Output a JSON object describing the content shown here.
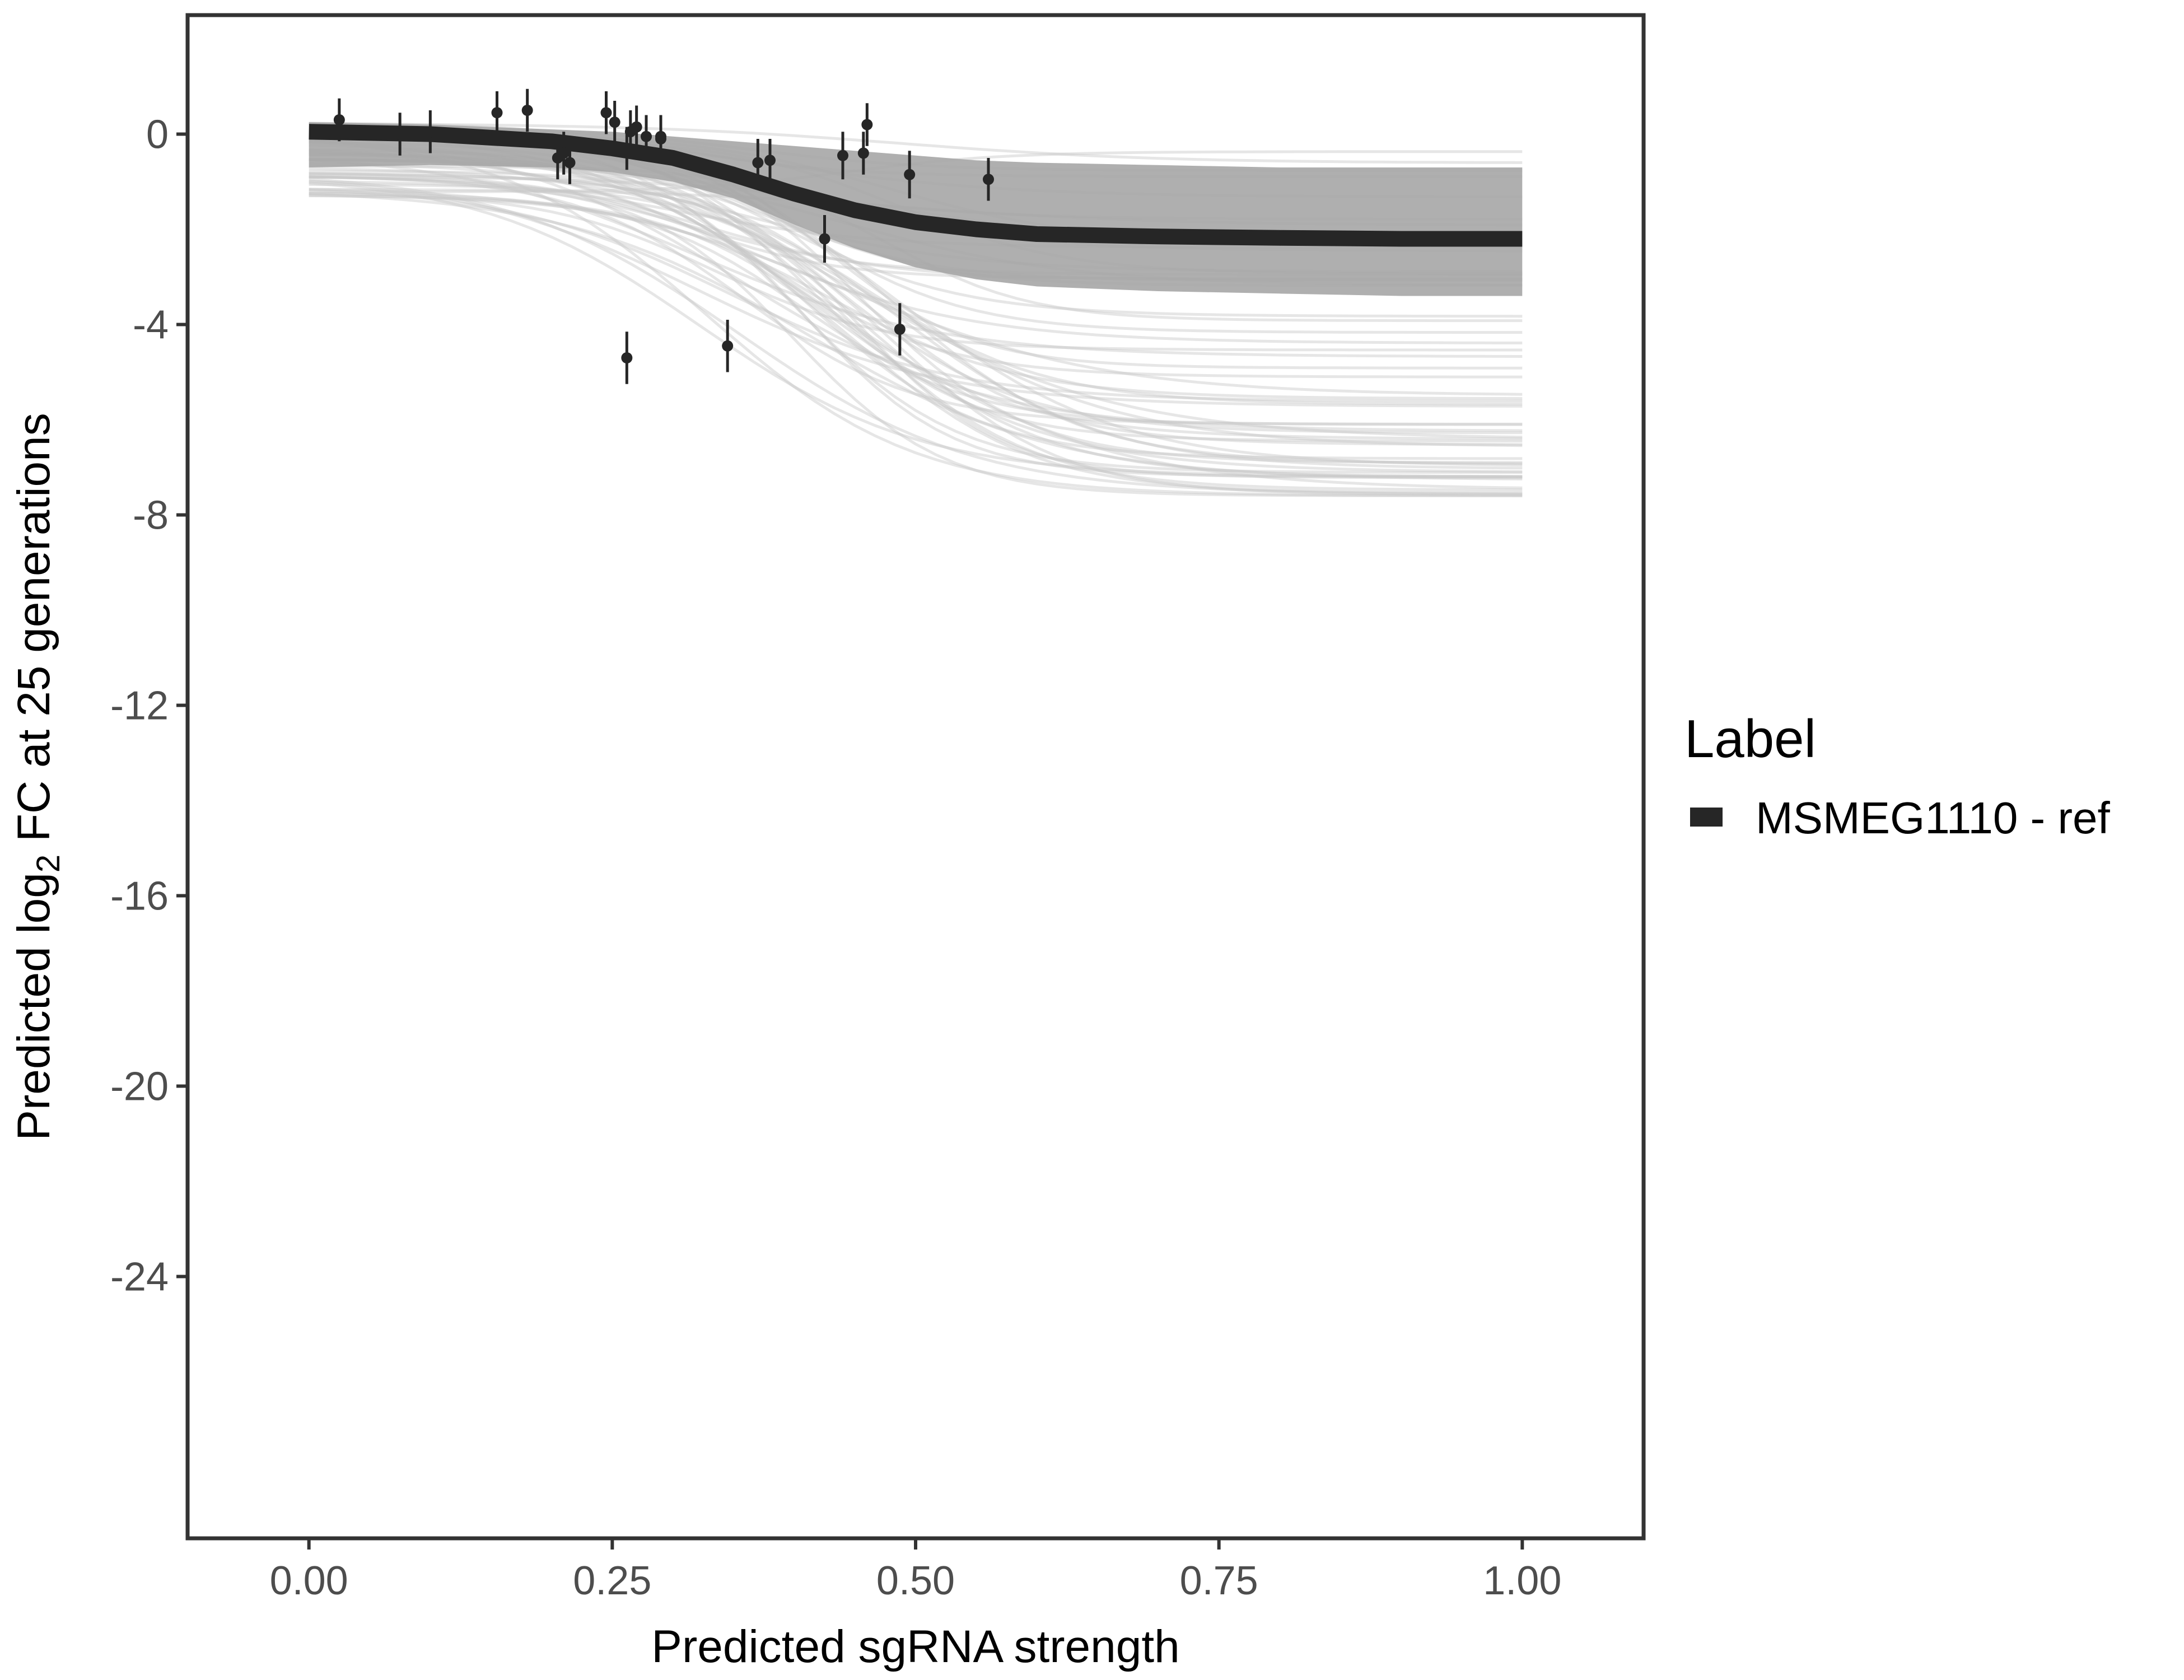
{
  "chart_data": {
    "type": "line",
    "xlabel": "Predicted sgRNA strength",
    "ylabel": {
      "prefix": "Predicted  log",
      "subscript": "2",
      "suffix": " FC at 25 generations"
    },
    "xlim": [
      -0.1,
      1.1
    ],
    "ylim": [
      -29.5,
      2.5
    ],
    "x_ticks": [
      0.0,
      0.25,
      0.5,
      0.75,
      1.0
    ],
    "x_tick_labels": [
      "0.00",
      "0.25",
      "0.50",
      "0.75",
      "1.00"
    ],
    "y_ticks": [
      0,
      -4,
      -8,
      -12,
      -16,
      -20,
      -24
    ],
    "y_tick_labels": [
      "0",
      "-4",
      "-8",
      "-12",
      "-16",
      "-20",
      "-24"
    ],
    "grid": false,
    "legend": {
      "title": "Label",
      "position": "right",
      "entries": [
        {
          "name": "MSMEG1110 - ref",
          "color": "#262626"
        }
      ]
    },
    "fit_curve": {
      "name": "MSMEG1110 - ref",
      "color": "#262626",
      "x": [
        0.0,
        0.1,
        0.2,
        0.25,
        0.3,
        0.35,
        0.4,
        0.45,
        0.5,
        0.55,
        0.6,
        0.7,
        0.8,
        0.9,
        1.0
      ],
      "y": [
        0.05,
        0.0,
        -0.15,
        -0.3,
        -0.5,
        -0.85,
        -1.25,
        -1.6,
        -1.85,
        -2.0,
        -2.1,
        -2.15,
        -2.18,
        -2.2,
        -2.2
      ]
    },
    "posterior_band": {
      "color": "#a6a6a6",
      "x": [
        0.0,
        0.1,
        0.2,
        0.25,
        0.3,
        0.35,
        0.4,
        0.45,
        0.5,
        0.55,
        0.6,
        0.7,
        0.8,
        0.9,
        1.0
      ],
      "y_low": [
        -0.7,
        -0.65,
        -0.7,
        -0.8,
        -1.0,
        -1.35,
        -1.9,
        -2.4,
        -2.8,
        -3.05,
        -3.2,
        -3.3,
        -3.35,
        -3.4,
        -3.4
      ],
      "y_high": [
        0.25,
        0.2,
        0.1,
        0.05,
        -0.05,
        -0.15,
        -0.25,
        -0.35,
        -0.45,
        -0.55,
        -0.6,
        -0.65,
        -0.7,
        -0.7,
        -0.7
      ]
    },
    "posterior_draws": {
      "color": "#c8c8c8",
      "count": 60,
      "x_min": 0.0,
      "x_max": 1.0,
      "top_min": -1.3,
      "top_max": 0.25,
      "bottom_min": -7.6,
      "bottom_max": 0.0,
      "midpoint_min": 0.3,
      "midpoint_max": 0.5
    },
    "points": {
      "color": "#262626",
      "x": [
        0.025,
        0.075,
        0.1,
        0.155,
        0.18,
        0.205,
        0.21,
        0.215,
        0.245,
        0.252,
        0.262,
        0.265,
        0.27,
        0.278,
        0.29,
        0.29,
        0.262,
        0.345,
        0.37,
        0.38,
        0.425,
        0.44,
        0.457,
        0.46,
        0.487,
        0.495,
        0.56
      ],
      "y": [
        0.3,
        0.0,
        0.05,
        0.45,
        0.5,
        -0.5,
        -0.4,
        -0.6,
        0.45,
        0.25,
        -0.3,
        0.05,
        0.15,
        -0.05,
        -0.05,
        -0.1,
        -4.7,
        -4.45,
        -0.6,
        -0.55,
        -2.2,
        -0.45,
        -0.4,
        0.2,
        -4.1,
        -0.85,
        -0.95
      ],
      "err": [
        0.45,
        0.45,
        0.45,
        0.45,
        0.45,
        0.45,
        0.45,
        0.45,
        0.45,
        0.45,
        0.45,
        0.45,
        0.45,
        0.45,
        0.45,
        0.45,
        0.55,
        0.55,
        0.5,
        0.45,
        0.5,
        0.5,
        0.45,
        0.45,
        0.55,
        0.5,
        0.45
      ]
    }
  }
}
